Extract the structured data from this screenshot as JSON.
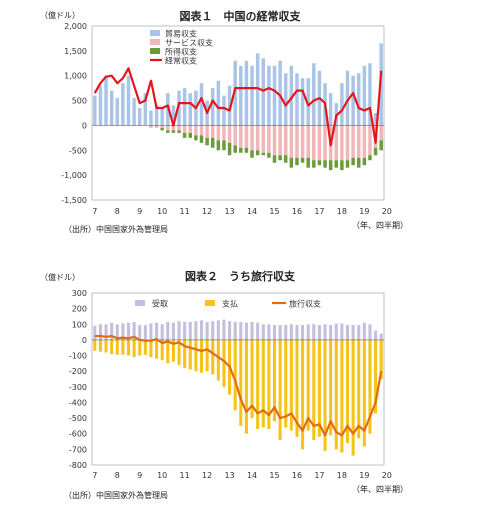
{
  "chart_data": [
    {
      "type": "bar",
      "title": "図表１　中国の経常収支",
      "unit": "（億ドル）",
      "source": "（出所）中国国家外為管理局",
      "x_unit": "（年、四半期）",
      "ylim": [
        -1500,
        2000
      ],
      "yticks": [
        "2,000",
        "1,500",
        "1,000",
        "500",
        "0",
        "-500",
        "-1,000",
        "-1,500"
      ],
      "ytick_values": [
        2000,
        1500,
        1000,
        500,
        0,
        -500,
        -1000,
        -1500
      ],
      "xtick_labels": [
        "7",
        "8",
        "9",
        "10",
        "11",
        "12",
        "13",
        "14",
        "15",
        "16",
        "17",
        "18",
        "19",
        "20"
      ],
      "legend": [
        "貿易収支",
        "サービス収支",
        "所得収支",
        "経常収支"
      ],
      "legend_position": "top-left",
      "colors": {
        "trade": "#a9c4e6",
        "service": "#f0b6b8",
        "income": "#6a9a3a",
        "current": "#e8141c"
      },
      "series": [
        {
          "name": "貿易収支",
          "values": [
            600,
            800,
            1000,
            700,
            550,
            850,
            1000,
            550,
            350,
            650,
            300,
            400,
            350,
            650,
            400,
            700,
            750,
            650,
            700,
            850,
            500,
            750,
            900,
            600,
            800,
            1300,
            1200,
            1300,
            1200,
            1450,
            1350,
            1200,
            1200,
            1300,
            1050,
            1200,
            1050,
            950,
            950,
            1250,
            1100,
            850,
            650,
            450,
            850,
            1100,
            1000,
            1050,
            1200,
            1250,
            250,
            1650
          ]
        },
        {
          "name": "サービス収支",
          "values": [
            0,
            0,
            0,
            0,
            0,
            0,
            0,
            0,
            0,
            0,
            -50,
            -50,
            -50,
            -100,
            -100,
            -100,
            -150,
            -150,
            -200,
            -200,
            -250,
            -250,
            -300,
            -300,
            -350,
            -400,
            -450,
            -450,
            -500,
            -500,
            -550,
            -550,
            -600,
            -600,
            -600,
            -650,
            -650,
            -650,
            -650,
            -700,
            -700,
            -700,
            -700,
            -700,
            -700,
            -700,
            -650,
            -650,
            -650,
            -600,
            -450,
            -300
          ]
        },
        {
          "name": "所得収支",
          "values": [
            0,
            0,
            0,
            0,
            0,
            0,
            0,
            0,
            0,
            0,
            0,
            0,
            -50,
            -50,
            -50,
            -50,
            -100,
            -100,
            -100,
            -150,
            -150,
            -200,
            -200,
            -200,
            -250,
            -150,
            -100,
            -100,
            -150,
            -100,
            -50,
            -100,
            -150,
            -100,
            -150,
            -200,
            -150,
            -100,
            -200,
            -150,
            -100,
            -150,
            -200,
            -150,
            -200,
            -150,
            -150,
            -200,
            -150,
            -100,
            -150,
            -200
          ]
        },
        {
          "name": "経常収支",
          "values": [
            650,
            850,
            980,
            1000,
            850,
            950,
            1150,
            800,
            450,
            500,
            900,
            350,
            350,
            400,
            0,
            450,
            450,
            450,
            350,
            550,
            250,
            500,
            350,
            350,
            300,
            750,
            750,
            750,
            750,
            750,
            700,
            750,
            700,
            600,
            400,
            550,
            700,
            700,
            400,
            500,
            550,
            450,
            -400,
            200,
            300,
            500,
            650,
            350,
            300,
            350,
            -350,
            1100
          ]
        }
      ]
    },
    {
      "type": "bar",
      "title": "図表２　うち旅行収支",
      "unit": "（億ドル）",
      "source": "（出所）中国国家外為管理局",
      "x_unit": "（年、四半期）",
      "ylim": [
        -800,
        300
      ],
      "yticks": [
        "300",
        "200",
        "100",
        "0",
        "-100",
        "-200",
        "-300",
        "-400",
        "-500",
        "-600",
        "-700",
        "-800"
      ],
      "ytick_values": [
        300,
        200,
        100,
        0,
        -100,
        -200,
        -300,
        -400,
        -500,
        -600,
        -700,
        -800
      ],
      "xtick_labels": [
        "7",
        "8",
        "9",
        "10",
        "11",
        "12",
        "13",
        "14",
        "15",
        "16",
        "17",
        "18",
        "19",
        "20"
      ],
      "legend": [
        "受取",
        "支払",
        "旅行収支"
      ],
      "legend_position": "top",
      "colors": {
        "receipts": "#c5bedc",
        "payments": "#f7c31a",
        "travel": "#e06c10"
      },
      "series": [
        {
          "name": "受取",
          "values": [
            90,
            100,
            100,
            110,
            100,
            105,
            110,
            115,
            95,
            95,
            105,
            110,
            100,
            115,
            110,
            120,
            115,
            115,
            120,
            125,
            115,
            120,
            125,
            130,
            120,
            115,
            115,
            110,
            115,
            110,
            100,
            100,
            95,
            95,
            95,
            100,
            95,
            95,
            100,
            100,
            95,
            100,
            95,
            105,
            105,
            95,
            95,
            95,
            110,
            100,
            60,
            40
          ]
        },
        {
          "name": "支払",
          "values": [
            -70,
            -75,
            -80,
            -90,
            -95,
            -95,
            -100,
            -110,
            -100,
            -95,
            -110,
            -120,
            -130,
            -150,
            -140,
            -160,
            -180,
            -190,
            -200,
            -210,
            -200,
            -220,
            -260,
            -300,
            -350,
            -450,
            -550,
            -600,
            -500,
            -570,
            -560,
            -570,
            -520,
            -640,
            -560,
            -580,
            -620,
            -700,
            -580,
            -640,
            -620,
            -710,
            -610,
            -700,
            -720,
            -660,
            -740,
            -630,
            -680,
            -600,
            -470,
            -250
          ]
        },
        {
          "name": "旅行収支",
          "values": [
            25,
            25,
            20,
            25,
            10,
            15,
            10,
            20,
            0,
            -5,
            -5,
            5,
            -20,
            -10,
            -25,
            -15,
            -40,
            -50,
            -60,
            -70,
            -60,
            -85,
            -110,
            -135,
            -170,
            -260,
            -380,
            -460,
            -420,
            -470,
            -450,
            -480,
            -430,
            -500,
            -490,
            -470,
            -530,
            -580,
            -500,
            -550,
            -540,
            -610,
            -520,
            -590,
            -610,
            -550,
            -600,
            -550,
            -580,
            -490,
            -400,
            -200
          ]
        }
      ]
    }
  ]
}
